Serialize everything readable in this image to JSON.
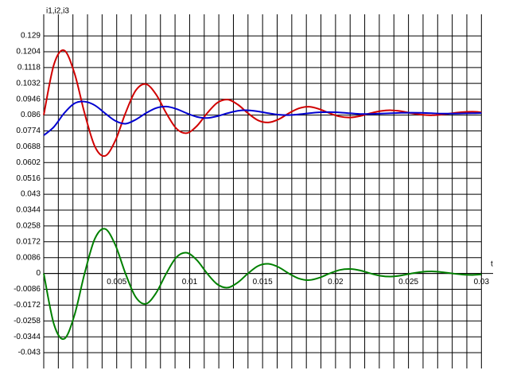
{
  "chart_data": {
    "type": "line",
    "ylabel": "i1,i2,i3",
    "xlabel": "t",
    "xlim": [
      0,
      0.0308
    ],
    "ylim": [
      -0.0516,
      0.1407
    ],
    "xticks": [
      0.005,
      0.01,
      0.015,
      0.02,
      0.025,
      0.03
    ],
    "xgrid": [
      0.001,
      0.002,
      0.003,
      0.004,
      0.005,
      0.006,
      0.007,
      0.008,
      0.009,
      0.01,
      0.011,
      0.012,
      0.013,
      0.014,
      0.015,
      0.016,
      0.017,
      0.018,
      0.019,
      0.02,
      0.021,
      0.022,
      0.023,
      0.024,
      0.025,
      0.026,
      0.027,
      0.028,
      0.029,
      0.03
    ],
    "yticks": [
      0.129,
      0.1204,
      0.1118,
      0.1032,
      0.0946,
      0.086,
      0.0774,
      0.0688,
      0.0602,
      0.0516,
      0.043,
      0.0344,
      0.0258,
      0.0172,
      0.0086,
      0,
      -0.0086,
      -0.0172,
      -0.0258,
      -0.0344,
      -0.043
    ],
    "grid": true,
    "x": [
      0,
      0.0007,
      0.0014,
      0.0021,
      0.0028,
      0.0035,
      0.0042,
      0.0049,
      0.0056,
      0.0063,
      0.007,
      0.0077,
      0.0084,
      0.0091,
      0.0098,
      0.0105,
      0.0112,
      0.0119,
      0.0126,
      0.0133,
      0.014,
      0.0147,
      0.0154,
      0.0161,
      0.0168,
      0.0175,
      0.0182,
      0.0189,
      0.0196,
      0.0203,
      0.021,
      0.0217,
      0.0224,
      0.0231,
      0.0238,
      0.0245,
      0.0252,
      0.0259,
      0.0266,
      0.0273,
      0.028,
      0.0287,
      0.0294,
      0.03
    ],
    "series": [
      {
        "color": "#d00000",
        "values": [
          0.086,
          0.1135,
          0.1211,
          0.1089,
          0.087,
          0.069,
          0.0638,
          0.072,
          0.087,
          0.0993,
          0.1028,
          0.0972,
          0.087,
          0.0786,
          0.0762,
          0.0801,
          0.087,
          0.0927,
          0.0944,
          0.0917,
          0.087,
          0.0831,
          0.082,
          0.0837,
          0.087,
          0.0897,
          0.0905,
          0.0892,
          0.087,
          0.0852,
          0.0847,
          0.0855,
          0.087,
          0.0882,
          0.0886,
          0.0881,
          0.087,
          0.0862,
          0.0859,
          0.0863,
          0.087,
          0.0876,
          0.0878,
          0.0875
        ]
      },
      {
        "color": "#0000d0",
        "values": [
          0.075,
          0.0796,
          0.087,
          0.0923,
          0.0933,
          0.0913,
          0.087,
          0.0829,
          0.0813,
          0.0835,
          0.087,
          0.0898,
          0.0906,
          0.0893,
          0.087,
          0.085,
          0.0844,
          0.0854,
          0.087,
          0.0883,
          0.0886,
          0.088,
          0.087,
          0.0862,
          0.086,
          0.0864,
          0.087,
          0.0875,
          0.0876,
          0.0874,
          0.087,
          0.0866,
          0.0866,
          0.0868,
          0.087,
          0.0872,
          0.0873,
          0.0872,
          0.087,
          0.0868,
          0.0868,
          0.0869,
          0.087,
          0.0871
        ]
      },
      {
        "color": "#008000",
        "values": [
          0,
          -0.0276,
          -0.0355,
          -0.0228,
          0,
          0.0188,
          0.0242,
          0.0156,
          0,
          -0.0128,
          -0.0165,
          -0.0106,
          0,
          0.0088,
          0.0112,
          0.0072,
          0,
          -0.0059,
          -0.0077,
          -0.0049,
          0,
          0.0041,
          0.0052,
          0.0034,
          0,
          -0.0028,
          -0.0036,
          -0.0023,
          0,
          0.0019,
          0.0024,
          0.0016,
          0,
          -0.0013,
          -0.0017,
          -0.0011,
          0,
          0.0008,
          0.0011,
          0.0007,
          0,
          -0.0006,
          -0.0008,
          -0.0005
        ]
      }
    ]
  }
}
